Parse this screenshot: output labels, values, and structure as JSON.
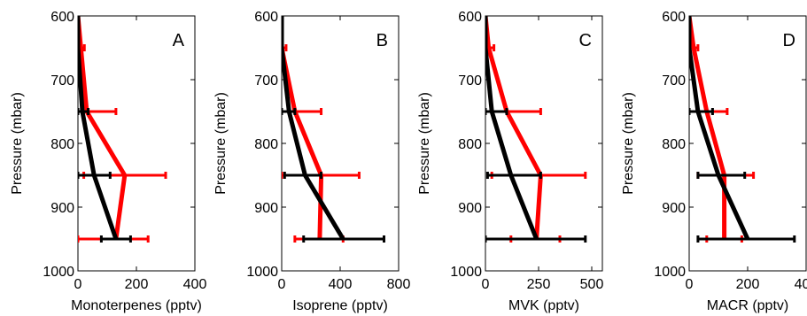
{
  "chart_data": [
    {
      "type": "line",
      "panel_label": "A",
      "xlabel": "Monoterpenes (pptv)",
      "ylabel": "Pressure (mbar)",
      "xlim": [
        0,
        400
      ],
      "ylim": [
        600,
        1000
      ],
      "y_inverted": true,
      "xticks": [
        0,
        200,
        400
      ],
      "yticks": [
        600,
        700,
        800,
        900,
        1000
      ],
      "grid": false,
      "series": [
        {
          "color": "#ff0000",
          "points": [
            [
              0,
              600
            ],
            [
              10,
              650
            ],
            [
              30,
              750
            ],
            [
              160,
              850
            ],
            [
              130,
              950
            ]
          ],
          "errors": [
            {
              "y": 650,
              "x0": 0,
              "x1": 22
            },
            {
              "y": 750,
              "x0": 0,
              "x1": 130
            },
            {
              "y": 850,
              "x0": 20,
              "x1": 300
            },
            {
              "y": 950,
              "x0": 0,
              "x1": 240
            }
          ]
        },
        {
          "color": "#000000",
          "points": [
            [
              0,
              600
            ],
            [
              0,
              650
            ],
            [
              15,
              750
            ],
            [
              55,
              850
            ],
            [
              130,
              950
            ]
          ],
          "errors": [
            {
              "y": 750,
              "x0": 0,
              "x1": 35
            },
            {
              "y": 850,
              "x0": 0,
              "x1": 110
            },
            {
              "y": 950,
              "x0": 80,
              "x1": 180
            }
          ]
        }
      ]
    },
    {
      "type": "line",
      "panel_label": "B",
      "xlabel": "Isoprene (pptv)",
      "ylabel": "Pressure (mbar)",
      "xlim": [
        0,
        800
      ],
      "ylim": [
        600,
        1000
      ],
      "y_inverted": true,
      "xticks": [
        0,
        400,
        800
      ],
      "yticks": [
        600,
        700,
        800,
        900,
        1000
      ],
      "grid": false,
      "series": [
        {
          "color": "#ff0000",
          "points": [
            [
              0,
              600
            ],
            [
              0,
              650
            ],
            [
              90,
              750
            ],
            [
              270,
              850
            ],
            [
              260,
              950
            ]
          ],
          "errors": [
            {
              "y": 650,
              "x0": 0,
              "x1": 30
            },
            {
              "y": 750,
              "x0": 0,
              "x1": 270
            },
            {
              "y": 850,
              "x0": 0,
              "x1": 530
            },
            {
              "y": 950,
              "x0": 90,
              "x1": 420
            }
          ]
        },
        {
          "color": "#000000",
          "points": [
            [
              0,
              600
            ],
            [
              0,
              650
            ],
            [
              50,
              750
            ],
            [
              160,
              850
            ],
            [
              420,
              950
            ]
          ],
          "errors": [
            {
              "y": 750,
              "x0": 0,
              "x1": 90
            },
            {
              "y": 850,
              "x0": 20,
              "x1": 270
            },
            {
              "y": 950,
              "x0": 150,
              "x1": 700
            }
          ]
        }
      ]
    },
    {
      "type": "line",
      "panel_label": "C",
      "xlabel": "MVK (pptv)",
      "ylabel": "Pressure (mbar)",
      "xlim": [
        0,
        550
      ],
      "ylim": [
        600,
        1000
      ],
      "y_inverted": true,
      "xticks": [
        0,
        250,
        500
      ],
      "yticks": [
        600,
        700,
        800,
        900,
        1000
      ],
      "grid": false,
      "series": [
        {
          "color": "#ff0000",
          "points": [
            [
              0,
              600
            ],
            [
              15,
              650
            ],
            [
              100,
              750
            ],
            [
              260,
              850
            ],
            [
              240,
              950
            ]
          ],
          "errors": [
            {
              "y": 650,
              "x0": 0,
              "x1": 40
            },
            {
              "y": 750,
              "x0": 0,
              "x1": 260
            },
            {
              "y": 850,
              "x0": 30,
              "x1": 470
            },
            {
              "y": 950,
              "x0": 120,
              "x1": 350
            }
          ]
        },
        {
          "color": "#000000",
          "points": [
            [
              0,
              600
            ],
            [
              0,
              650
            ],
            [
              30,
              750
            ],
            [
              120,
              850
            ],
            [
              240,
              950
            ]
          ],
          "errors": [
            {
              "y": 750,
              "x0": 0,
              "x1": 100
            },
            {
              "y": 850,
              "x0": 10,
              "x1": 260
            },
            {
              "y": 950,
              "x0": 0,
              "x1": 470
            }
          ]
        }
      ]
    },
    {
      "type": "line",
      "panel_label": "D",
      "xlabel": "MACR (pptv)",
      "ylabel": "Pressure (mbar)",
      "xlim": [
        0,
        400
      ],
      "ylim": [
        600,
        1000
      ],
      "y_inverted": true,
      "xticks": [
        0,
        200,
        400
      ],
      "yticks": [
        600,
        700,
        800,
        900,
        1000
      ],
      "grid": false,
      "series": [
        {
          "color": "#ff0000",
          "points": [
            [
              0,
              600
            ],
            [
              15,
              650
            ],
            [
              60,
              750
            ],
            [
              120,
              850
            ],
            [
              120,
              950
            ]
          ],
          "errors": [
            {
              "y": 650,
              "x0": 0,
              "x1": 30
            },
            {
              "y": 750,
              "x0": 0,
              "x1": 130
            },
            {
              "y": 850,
              "x0": 30,
              "x1": 220
            },
            {
              "y": 950,
              "x0": 60,
              "x1": 180
            }
          ]
        },
        {
          "color": "#000000",
          "points": [
            [
              0,
              600
            ],
            [
              0,
              650
            ],
            [
              30,
              750
            ],
            [
              100,
              850
            ],
            [
              200,
              950
            ]
          ],
          "errors": [
            {
              "y": 750,
              "x0": 0,
              "x1": 80
            },
            {
              "y": 850,
              "x0": 30,
              "x1": 190
            },
            {
              "y": 950,
              "x0": 30,
              "x1": 360
            }
          ]
        }
      ]
    }
  ]
}
